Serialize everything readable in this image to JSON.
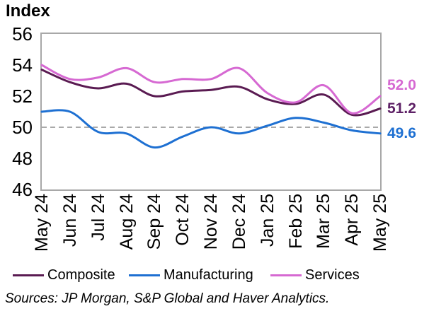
{
  "title": "Index",
  "source_note": "Sources: JP Morgan, S&P Global and Haver Analytics.",
  "chart_data": {
    "type": "line",
    "title": "Index",
    "x": [
      "May 24",
      "Jun 24",
      "Jul 24",
      "Aug 24",
      "Sep 24",
      "Oct 24",
      "Nov 24",
      "Dec 24",
      "Jan 25",
      "Feb 25",
      "Mar 25",
      "Apr 25",
      "May 25"
    ],
    "ylim": [
      46,
      56
    ],
    "yticks": [
      56,
      54,
      52,
      50,
      48,
      46
    ],
    "reference_line": 50,
    "grid": false,
    "smoothing": true,
    "legend_position": "bottom",
    "axis_color": "#a8a8a8",
    "reference_line_color": "#a9a9a9",
    "series": [
      {
        "name": "Composite",
        "color": "#5a1b52",
        "end_label": "51.2",
        "end_label_color": "#5e2166",
        "values": [
          53.7,
          52.9,
          52.5,
          52.8,
          52.0,
          52.3,
          52.4,
          52.6,
          51.8,
          51.5,
          52.1,
          50.8,
          51.2
        ]
      },
      {
        "name": "Manufacturing",
        "color": "#1e70d2",
        "end_label": "49.6",
        "end_label_color": "#1e70d2",
        "values": [
          51.0,
          51.0,
          49.7,
          49.6,
          48.7,
          49.4,
          50.0,
          49.6,
          50.1,
          50.6,
          50.3,
          49.8,
          49.6
        ]
      },
      {
        "name": "Services",
        "color": "#d669d2",
        "end_label": "52.0",
        "end_label_color": "#d669d2",
        "values": [
          54.0,
          53.1,
          53.2,
          53.8,
          52.9,
          53.1,
          53.1,
          53.8,
          52.2,
          51.6,
          52.7,
          50.9,
          52.0
        ]
      }
    ]
  }
}
